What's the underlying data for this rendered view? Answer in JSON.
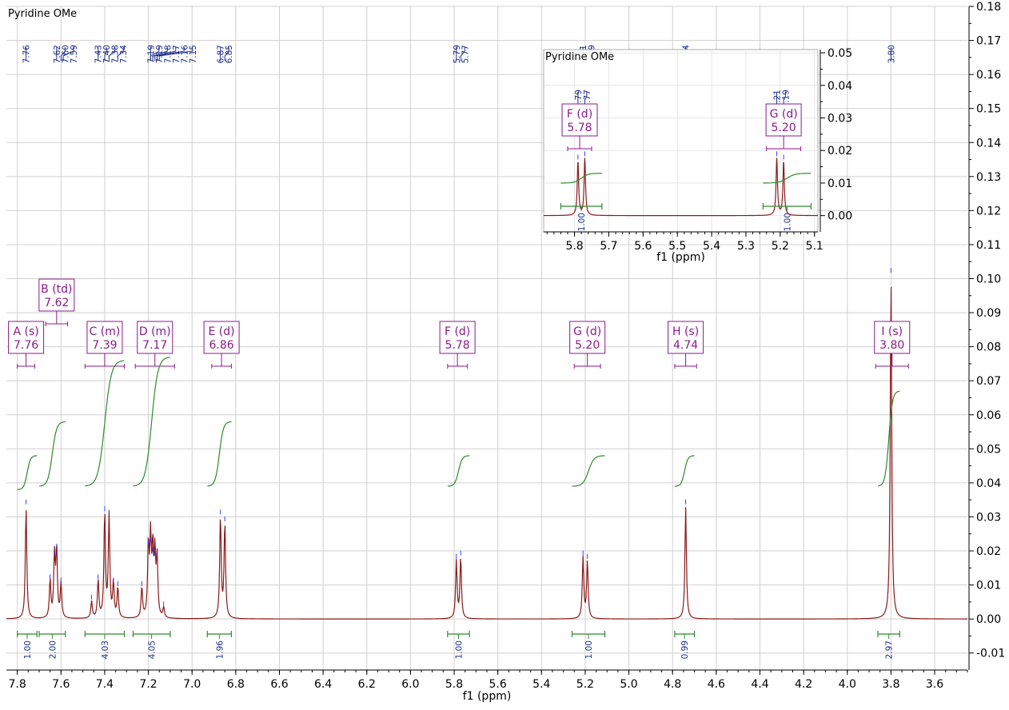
{
  "chart_data": {
    "type": "line",
    "title": "Pyridine OMe",
    "xlabel": "f1 (ppm)",
    "xlim": [
      7.85,
      3.45
    ],
    "ylim": [
      -0.015,
      0.18
    ],
    "x_ticks": [
      7.8,
      7.6,
      7.4,
      7.2,
      7.0,
      6.8,
      6.6,
      6.4,
      6.2,
      6.0,
      5.8,
      5.6,
      5.4,
      5.2,
      5.0,
      4.8,
      4.6,
      4.4,
      4.2,
      4.0,
      3.8,
      3.6
    ],
    "x_tick_labels": [
      "7.8",
      "7.6",
      "7.4",
      "7.2",
      "7.0",
      "6.8",
      "6.6",
      "6.4",
      "6.2",
      "6.0",
      "5.8",
      "5.6",
      "5.4",
      "5.2",
      "5.0",
      "4.8",
      "4.6",
      "4.4",
      "4.2",
      "4.0",
      "3.8",
      "3.6"
    ],
    "y_ticks": [
      -0.01,
      0.0,
      0.01,
      0.02,
      0.03,
      0.04,
      0.05,
      0.06,
      0.07,
      0.08,
      0.09,
      0.1,
      0.11,
      0.12,
      0.13,
      0.14,
      0.15,
      0.16,
      0.17,
      0.18
    ],
    "y_tick_labels": [
      "-0.01",
      "0.00",
      "0.01",
      "0.02",
      "0.03",
      "0.04",
      "0.05",
      "0.06",
      "0.07",
      "0.08",
      "0.09",
      "0.10",
      "0.11",
      "0.12",
      "0.13",
      "0.14",
      "0.15",
      "0.16",
      "0.17",
      "0.18"
    ],
    "grid": true,
    "peaks": [
      {
        "x": 7.76,
        "y": 0.033
      },
      {
        "x": 7.65,
        "y": 0.011
      },
      {
        "x": 7.63,
        "y": 0.018
      },
      {
        "x": 7.62,
        "y": 0.02
      },
      {
        "x": 7.6,
        "y": 0.01
      },
      {
        "x": 7.46,
        "y": 0.005
      },
      {
        "x": 7.43,
        "y": 0.011
      },
      {
        "x": 7.4,
        "y": 0.031
      },
      {
        "x": 7.38,
        "y": 0.03
      },
      {
        "x": 7.36,
        "y": 0.01
      },
      {
        "x": 7.34,
        "y": 0.009
      },
      {
        "x": 7.23,
        "y": 0.009
      },
      {
        "x": 7.2,
        "y": 0.021
      },
      {
        "x": 7.19,
        "y": 0.022
      },
      {
        "x": 7.18,
        "y": 0.019
      },
      {
        "x": 7.17,
        "y": 0.018
      },
      {
        "x": 7.16,
        "y": 0.017
      },
      {
        "x": 7.13,
        "y": 0.003
      },
      {
        "x": 6.87,
        "y": 0.03
      },
      {
        "x": 6.85,
        "y": 0.028
      },
      {
        "x": 5.79,
        "y": 0.017
      },
      {
        "x": 5.77,
        "y": 0.018
      },
      {
        "x": 5.21,
        "y": 0.018
      },
      {
        "x": 5.19,
        "y": 0.017
      },
      {
        "x": 4.74,
        "y": 0.033
      },
      {
        "x": 3.8,
        "y": 0.101
      }
    ],
    "peak_picks": [
      {
        "x": 7.76,
        "label": "7.76"
      },
      {
        "x": 7.62,
        "label": "7.62"
      },
      {
        "x": 7.6,
        "label": "7.60"
      },
      {
        "x": 7.59,
        "label": "7.59"
      },
      {
        "x": 7.43,
        "label": "7.43"
      },
      {
        "x": 7.4,
        "label": "7.40"
      },
      {
        "x": 7.38,
        "label": "7.38"
      },
      {
        "x": 7.34,
        "label": "7.34"
      },
      {
        "x": 7.19,
        "label": "7.19"
      },
      {
        "x": 7.19,
        "label": "7.19"
      },
      {
        "x": 7.18,
        "label": "7.18"
      },
      {
        "x": 7.17,
        "label": "7.17"
      },
      {
        "x": 7.16,
        "label": "7.16"
      },
      {
        "x": 7.15,
        "label": "7.15"
      },
      {
        "x": 6.87,
        "label": "6.87"
      },
      {
        "x": 6.85,
        "label": "6.85"
      },
      {
        "x": 5.79,
        "label": "5.79"
      },
      {
        "x": 5.77,
        "label": "5.77"
      },
      {
        "x": 5.21,
        "label": "5.21"
      },
      {
        "x": 5.19,
        "label": "5.19"
      },
      {
        "x": 4.74,
        "label": "4.74"
      },
      {
        "x": 3.8,
        "label": "3.80"
      }
    ],
    "multiplets": [
      {
        "letter": "A",
        "mult": "s",
        "shift": "7.76",
        "range": [
          7.8,
          7.72
        ]
      },
      {
        "letter": "B",
        "mult": "td",
        "shift": "7.62",
        "range": [
          7.67,
          7.57
        ]
      },
      {
        "letter": "C",
        "mult": "m",
        "shift": "7.39",
        "range": [
          7.49,
          7.31
        ]
      },
      {
        "letter": "D",
        "mult": "m",
        "shift": "7.17",
        "range": [
          7.26,
          7.08
        ]
      },
      {
        "letter": "E",
        "mult": "d",
        "shift": "6.86",
        "range": [
          6.91,
          6.82
        ]
      },
      {
        "letter": "F",
        "mult": "d",
        "shift": "5.78",
        "range": [
          5.83,
          5.74
        ]
      },
      {
        "letter": "G",
        "mult": "d",
        "shift": "5.20",
        "range": [
          5.25,
          5.13
        ]
      },
      {
        "letter": "H",
        "mult": "s",
        "shift": "4.74",
        "range": [
          4.79,
          4.69
        ]
      },
      {
        "letter": "I",
        "mult": "s",
        "shift": "3.80",
        "range": [
          3.87,
          3.72
        ]
      }
    ],
    "integrals": [
      {
        "range": [
          7.8,
          7.71
        ],
        "label": "1.00",
        "curve_y": [
          0.038,
          0.048
        ]
      },
      {
        "range": [
          7.7,
          7.58
        ],
        "label": "2.00",
        "curve_y": [
          0.039,
          0.058
        ]
      },
      {
        "range": [
          7.49,
          7.31
        ],
        "label": "4.03",
        "curve_y": [
          0.039,
          0.076
        ]
      },
      {
        "range": [
          7.27,
          7.1
        ],
        "label": "4.05",
        "curve_y": [
          0.039,
          0.077
        ]
      },
      {
        "range": [
          6.93,
          6.82
        ],
        "label": "1.96",
        "curve_y": [
          0.039,
          0.058
        ]
      },
      {
        "range": [
          5.83,
          5.73
        ],
        "label": "1.00",
        "curve_y": [
          0.039,
          0.048
        ]
      },
      {
        "range": [
          5.26,
          5.11
        ],
        "label": "1.00",
        "curve_y": [
          0.039,
          0.048
        ]
      },
      {
        "range": [
          4.79,
          4.7
        ],
        "label": "0.99",
        "curve_y": [
          0.039,
          0.048
        ]
      },
      {
        "range": [
          3.86,
          3.76
        ],
        "label": "2.97",
        "curve_y": [
          0.039,
          0.067
        ]
      }
    ],
    "inset": {
      "title": "Pyridine OMe",
      "xlabel": "f1 (ppm)",
      "xlim": [
        5.89,
        5.09
      ],
      "ylim": [
        -0.005,
        0.051
      ],
      "x_ticks": [
        5.8,
        5.7,
        5.6,
        5.5,
        5.4,
        5.3,
        5.2,
        5.1
      ],
      "x_tick_labels": [
        "5.8",
        "5.7",
        "5.6",
        "5.5",
        "5.4",
        "5.3",
        "5.2",
        "5.1"
      ],
      "y_ticks": [
        0.0,
        0.01,
        0.02,
        0.03,
        0.04,
        0.05
      ],
      "y_tick_labels": [
        "0.00",
        "0.01",
        "0.02",
        "0.03",
        "0.04",
        "0.05"
      ],
      "peaks": [
        {
          "x": 5.79,
          "y": 0.0165
        },
        {
          "x": 5.77,
          "y": 0.0175
        },
        {
          "x": 5.21,
          "y": 0.0175
        },
        {
          "x": 5.19,
          "y": 0.0165
        }
      ],
      "peak_picks": [
        {
          "x": 5.79,
          "label": "5.79"
        },
        {
          "x": 5.77,
          "label": "5.77"
        },
        {
          "x": 5.21,
          "label": "5.21"
        },
        {
          "x": 5.19,
          "label": "5.19"
        }
      ],
      "multiplets": [
        {
          "letter": "F",
          "mult": "d",
          "shift": "5.78",
          "range": [
            5.82,
            5.75
          ]
        },
        {
          "letter": "G",
          "mult": "d",
          "shift": "5.20",
          "range": [
            5.24,
            5.14
          ]
        }
      ],
      "integrals": [
        {
          "range": [
            5.84,
            5.72
          ],
          "label": "1.00",
          "curve_y": [
            0.01,
            0.013
          ]
        },
        {
          "range": [
            5.25,
            5.11
          ],
          "label": "1.00",
          "curve_y": [
            0.01,
            0.013
          ]
        }
      ]
    },
    "colors": {
      "spectrum": "#8b1a1a",
      "integral": "#2f8a2f",
      "label": "#1f2f8a",
      "multiplet": "#8b1a8b",
      "grid": "#d0d0d0",
      "axis": "#000000"
    }
  }
}
